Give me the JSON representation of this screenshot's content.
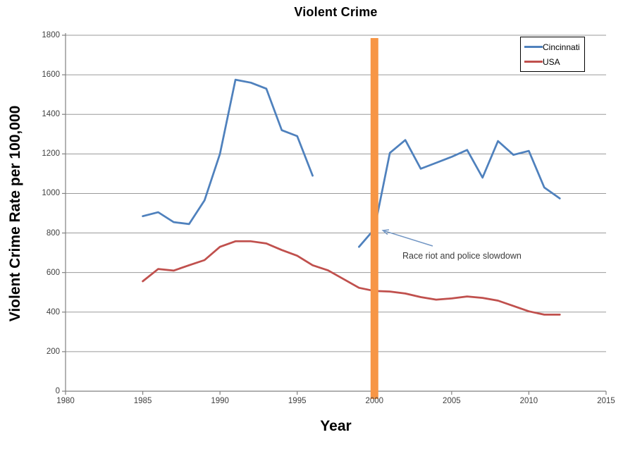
{
  "chart_data": {
    "type": "line",
    "title": "Violent Crime",
    "xlabel": "Year",
    "ylabel": "Violent Crime Rate per 100,000",
    "xlim": [
      1980,
      2015
    ],
    "ylim": [
      0,
      1800
    ],
    "x_ticks": [
      1980,
      1985,
      1990,
      1995,
      2000,
      2005,
      2010,
      2015
    ],
    "y_ticks": [
      0,
      200,
      400,
      600,
      800,
      1000,
      1200,
      1400,
      1600,
      1800
    ],
    "grid": "horizontal",
    "legend_position": "top-right",
    "series": [
      {
        "name": "Cincinnati",
        "color": "#4F81BD",
        "segments": [
          [
            [
              1985,
              885
            ],
            [
              1986,
              905
            ],
            [
              1987,
              855
            ],
            [
              1988,
              845
            ],
            [
              1989,
              965
            ],
            [
              1990,
              1200
            ],
            [
              1991,
              1575
            ],
            [
              1992,
              1560
            ],
            [
              1993,
              1530
            ],
            [
              1994,
              1320
            ],
            [
              1995,
              1290
            ],
            [
              1996,
              1090
            ]
          ],
          [
            [
              1999,
              730
            ],
            [
              2000,
              820
            ],
            [
              2001,
              1205
            ],
            [
              2002,
              1270
            ],
            [
              2003,
              1125
            ],
            [
              2004,
              1155
            ],
            [
              2005,
              1185
            ],
            [
              2006,
              1220
            ],
            [
              2007,
              1080
            ],
            [
              2008,
              1265
            ],
            [
              2009,
              1195
            ],
            [
              2010,
              1215
            ],
            [
              2011,
              1030
            ],
            [
              2012,
              975
            ]
          ]
        ]
      },
      {
        "name": "USA",
        "color": "#C0504D",
        "segments": [
          [
            [
              1985,
              556
            ],
            [
              1986,
              618
            ],
            [
              1987,
              610
            ],
            [
              1988,
              637
            ],
            [
              1989,
              663
            ],
            [
              1990,
              730
            ],
            [
              1991,
              758
            ],
            [
              1992,
              758
            ],
            [
              1993,
              747
            ],
            [
              1994,
              714
            ],
            [
              1995,
              685
            ],
            [
              1996,
              637
            ],
            [
              1997,
              611
            ],
            [
              1998,
              567
            ],
            [
              1999,
              523
            ],
            [
              2000,
              507
            ],
            [
              2001,
              504
            ],
            [
              2002,
              494
            ],
            [
              2003,
              476
            ],
            [
              2004,
              463
            ],
            [
              2005,
              469
            ],
            [
              2006,
              479
            ],
            [
              2007,
              472
            ],
            [
              2008,
              458
            ],
            [
              2009,
              431
            ],
            [
              2010,
              404
            ],
            [
              2011,
              387
            ],
            [
              2012,
              387
            ]
          ]
        ]
      }
    ],
    "highlight_bar": {
      "x": 2000,
      "color": "#F79646"
    },
    "annotation": {
      "text": "Race riot and police slowdown",
      "arrow_color": "#7296C4",
      "points_to": [
        2000,
        820
      ]
    }
  },
  "colors": {
    "grid": "#9A9A9A",
    "axis": "#808080",
    "tick_text": "#3F3F3F"
  }
}
